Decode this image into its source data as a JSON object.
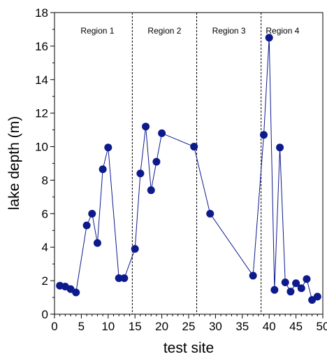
{
  "chart_data": {
    "type": "scatter",
    "title": "",
    "xlabel": "test site",
    "ylabel": "lake depth (m)",
    "xlim": [
      0,
      50
    ],
    "ylim": [
      0,
      18
    ],
    "xticks": [
      0,
      5,
      10,
      15,
      20,
      25,
      30,
      35,
      40,
      45,
      50
    ],
    "yticks": [
      0,
      2,
      4,
      6,
      8,
      10,
      12,
      14,
      16,
      18
    ],
    "grid": false,
    "legend": "none",
    "series": [
      {
        "color": "#0d1a8c",
        "connected": true,
        "x": [
          1,
          2,
          3,
          4,
          6,
          7,
          8,
          9,
          10,
          12,
          13,
          15,
          16,
          17,
          18,
          19,
          20,
          26,
          29,
          37,
          39,
          40,
          41,
          42,
          43,
          44,
          45,
          46,
          47,
          48,
          49
        ],
        "y": [
          1.7,
          1.65,
          1.5,
          1.3,
          5.3,
          6.0,
          4.25,
          8.65,
          9.95,
          2.15,
          2.15,
          3.9,
          8.4,
          11.2,
          7.4,
          9.1,
          10.8,
          10.0,
          6.0,
          2.3,
          10.7,
          16.5,
          1.45,
          9.95,
          1.9,
          1.35,
          1.85,
          1.55,
          2.1,
          0.85,
          1.05
        ]
      }
    ],
    "region_dividers": [
      14.5,
      26.5,
      38.5
    ],
    "regions": [
      {
        "label": "Region 1",
        "x_center": 8
      },
      {
        "label": "Region 2",
        "x_center": 20.5
      },
      {
        "label": "Region 3",
        "x_center": 32.5
      },
      {
        "label": "Region 4",
        "x_center": 42.5
      }
    ]
  }
}
